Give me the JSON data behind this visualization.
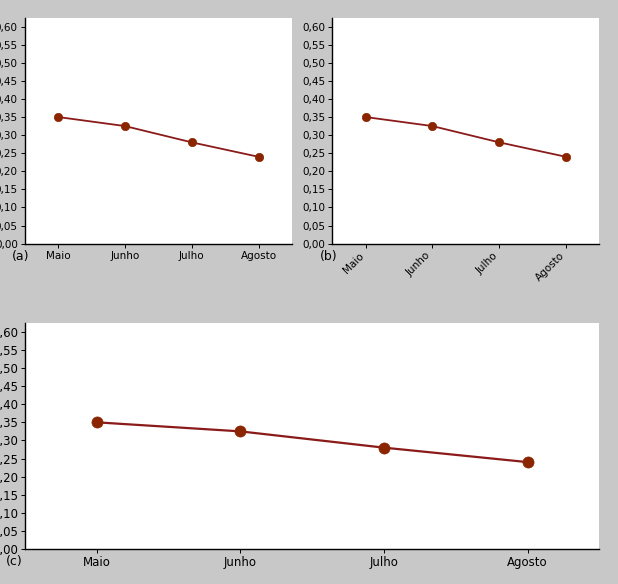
{
  "categories": [
    "Maio",
    "Junho",
    "Julho",
    "Agosto"
  ],
  "values": [
    0.35,
    0.325,
    0.28,
    0.24
  ],
  "line_color": "#8B1A1A",
  "marker_color": "#8B2500",
  "bg_color": "#c8c8c8",
  "panel_bg": "#ffffff",
  "ylim": [
    0.0,
    0.625
  ],
  "yticks": [
    0.0,
    0.05,
    0.1,
    0.15,
    0.2,
    0.25,
    0.3,
    0.35,
    0.4,
    0.45,
    0.5,
    0.55,
    0.6
  ],
  "label_a": "(a)",
  "label_b": "(b)",
  "label_c": "(c)"
}
